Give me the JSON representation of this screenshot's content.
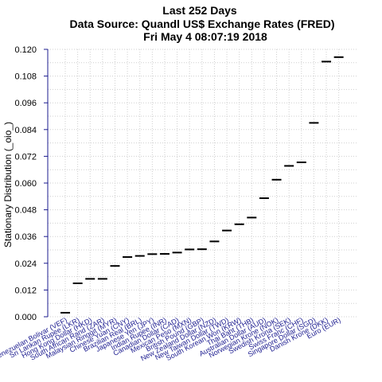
{
  "chart_data": {
    "type": "scatter",
    "title_lines": [
      "Last 252 Days",
      "Data Source: Quandl US$ Exchange Rates (FRED)",
      "Fri May  4 08:07:19 2018"
    ],
    "xlabel": "",
    "ylabel": "Stationary Distribution (_oio_)",
    "ylim": [
      0,
      0.12
    ],
    "yticks": [
      "0.000",
      "0.012",
      "0.024",
      "0.036",
      "0.048",
      "0.060",
      "0.072",
      "0.084",
      "0.096",
      "0.108",
      "0.120"
    ],
    "grid": true,
    "categories": [
      "Venezuelan Bolivar (VEF)",
      "Sri Lankan Rupee (LKR)",
      "Hong Kong Dollar (HKD)",
      "South African Rand (ZAR)",
      "Malaysian Ringgit (MYR)",
      "Chinese Yuan (CNY)",
      "Brazilian Real (BRL)",
      "Japanese Yen (JPY)",
      "Indian Rupee (INR)",
      "Canadian Dollar (CAD)",
      "Mexican Peso (MXN)",
      "British Pound (GBP)",
      "New Zealand Dollar (NZD)",
      "New Taiwan Dollar (TWD)",
      "South Korean Won (KRW)",
      "Thai Baht (THB)",
      "Australian Dollar (AUD)",
      "Norwegian Krone (NOK)",
      "Swedish Krona (SEK)",
      "Swiss Franc (CHF)",
      "Singapore Dollar (SGD)",
      "Danish Krone (DKK)",
      "Euro (EUR)"
    ],
    "values": [
      0.0018,
      0.015,
      0.017,
      0.017,
      0.0228,
      0.0268,
      0.0273,
      0.0281,
      0.0282,
      0.0288,
      0.0302,
      0.0303,
      0.0338,
      0.0387,
      0.0415,
      0.0445,
      0.0532,
      0.0615,
      0.0677,
      0.0693,
      0.087,
      0.1145,
      0.1165
    ],
    "colors": {
      "axis": "#1b1b8f",
      "mark": "#000000",
      "grid": "#cfcfcf",
      "labels": "#1b1b8f"
    }
  }
}
